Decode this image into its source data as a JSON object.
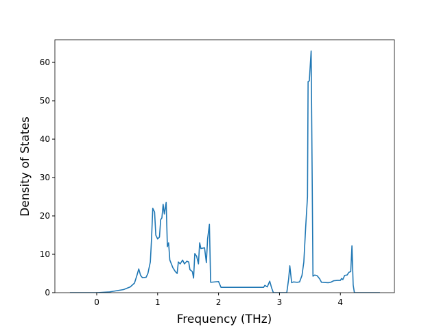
{
  "chart_data": {
    "type": "line",
    "x_label": "Frequency (THz)",
    "y_label": "Density of States",
    "x": [
      -0.44,
      0,
      0.21,
      0.44,
      0.55,
      0.62,
      0.66,
      0.69,
      0.72,
      0.75,
      0.81,
      0.84,
      0.88,
      0.9,
      0.92,
      0.95,
      0.97,
      1.0,
      1.03,
      1.05,
      1.07,
      1.09,
      1.11,
      1.14,
      1.16,
      1.18,
      1.2,
      1.25,
      1.29,
      1.32,
      1.34,
      1.37,
      1.41,
      1.44,
      1.48,
      1.51,
      1.53,
      1.57,
      1.59,
      1.61,
      1.64,
      1.67,
      1.69,
      1.71,
      1.77,
      1.8,
      1.82,
      1.85,
      1.87,
      2.0,
      2.04,
      2.47,
      2.74,
      2.76,
      2.8,
      2.84,
      2.87,
      2.9,
      3.12,
      3.15,
      3.17,
      3.2,
      3.23,
      3.29,
      3.33,
      3.37,
      3.4,
      3.43,
      3.46,
      3.47,
      3.49,
      3.52,
      3.55,
      3.58,
      3.62,
      3.66,
      3.69,
      3.8,
      3.84,
      3.89,
      3.95,
      4.0,
      4.02,
      4.04,
      4.07,
      4.11,
      4.14,
      4.17,
      4.19,
      4.21,
      4.23,
      4.65
    ],
    "values": [
      0,
      0,
      0.2,
      0.8,
      1.5,
      2.5,
      4.5,
      6.2,
      4.5,
      3.9,
      4,
      5,
      8,
      14,
      22,
      21,
      15,
      14,
      14.5,
      19,
      19.5,
      23,
      20.5,
      23.5,
      12,
      13,
      8.5,
      6.5,
      5.5,
      5,
      8,
      7.5,
      8.5,
      7.5,
      8.2,
      8,
      6,
      5.5,
      3.8,
      10.2,
      9.5,
      7.5,
      13,
      11.5,
      11.7,
      7.8,
      14,
      17.8,
      2.7,
      2.9,
      1.4,
      1.4,
      1.4,
      1.9,
      1.5,
      3,
      1.3,
      0,
      0,
      3.5,
      7,
      2.6,
      2.8,
      2.7,
      2.8,
      4.5,
      8,
      17,
      25,
      55,
      55.2,
      63,
      4.3,
      4.6,
      4.4,
      3.6,
      2.7,
      2.6,
      2.7,
      3.1,
      3.2,
      3.2,
      3.7,
      3.4,
      4.5,
      4.6,
      5.3,
      5.5,
      12.2,
      2,
      0,
      0
    ],
    "color": "#1f77b4",
    "xlim": [
      -0.687,
      4.887
    ],
    "xticks": [
      0,
      1,
      2,
      3,
      4
    ],
    "ylim": [
      0,
      65.9
    ],
    "yticks": [
      0,
      10,
      20,
      30,
      40,
      50,
      60
    ]
  }
}
